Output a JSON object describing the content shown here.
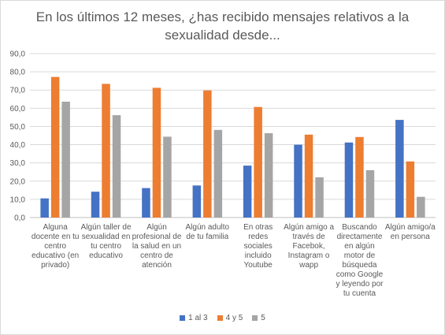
{
  "chart_data": {
    "type": "bar",
    "title": "En los últimos 12 meses, ¿has recibido mensajes relativos a la sexualidad desde...",
    "categories": [
      "Alguna docente en tu centro educativo (en privado)",
      "Algún taller de sexualidad en tu centro educativo",
      "Algún profesional de la salud en un centro de atención",
      "Algún adulto de tu familia",
      "En otras redes sociales incluido Youtube",
      "Algún amigo a través de Facebok, Instagram o wapp",
      "Buscando directamente en algún motor de búsqueda como Google y leyendo por tu cuenta",
      "Algún amigo/a en persona"
    ],
    "category_lines": [
      [
        "Alguna",
        "docente en tu",
        "centro",
        "educativo (en",
        "privado)"
      ],
      [
        "Algún taller de",
        "sexualidad en",
        "tu centro",
        "educativo"
      ],
      [
        "Algún",
        "profesional de",
        "la salud en un",
        "centro de",
        "atención"
      ],
      [
        "Algún adulto",
        "de tu familia"
      ],
      [
        "En otras redes",
        "sociales",
        "incluido",
        "Youtube"
      ],
      [
        "Algún amigo a",
        "través de",
        "Facebok,",
        "Instagram o",
        "wapp"
      ],
      [
        "Buscando",
        "directamente",
        "en algún",
        "motor de",
        "búsqueda",
        "como Google",
        "y leyendo por",
        "tu cuenta"
      ],
      [
        "Algún amigo/a",
        "en persona"
      ]
    ],
    "series": [
      {
        "name": "1 al 3",
        "color": "#4472C4",
        "values": [
          10.5,
          14.2,
          16.2,
          17.6,
          28.5,
          40.0,
          41.2,
          53.6
        ]
      },
      {
        "name": "4 y 5",
        "color": "#ED7D31",
        "values": [
          77.2,
          73.4,
          71.2,
          69.8,
          60.7,
          45.5,
          44.2,
          30.8
        ]
      },
      {
        "name": "5",
        "color": "#A5A5A5",
        "values": [
          63.6,
          56.2,
          44.4,
          48.1,
          46.3,
          22.1,
          26.0,
          11.4
        ]
      }
    ],
    "ylim": [
      0,
      90
    ],
    "yticks": [
      "0,0",
      "10,0",
      "20,0",
      "30,0",
      "40,0",
      "50,0",
      "60,0",
      "70,0",
      "80,0",
      "90,0"
    ],
    "grid": true,
    "legend_position": "bottom"
  }
}
